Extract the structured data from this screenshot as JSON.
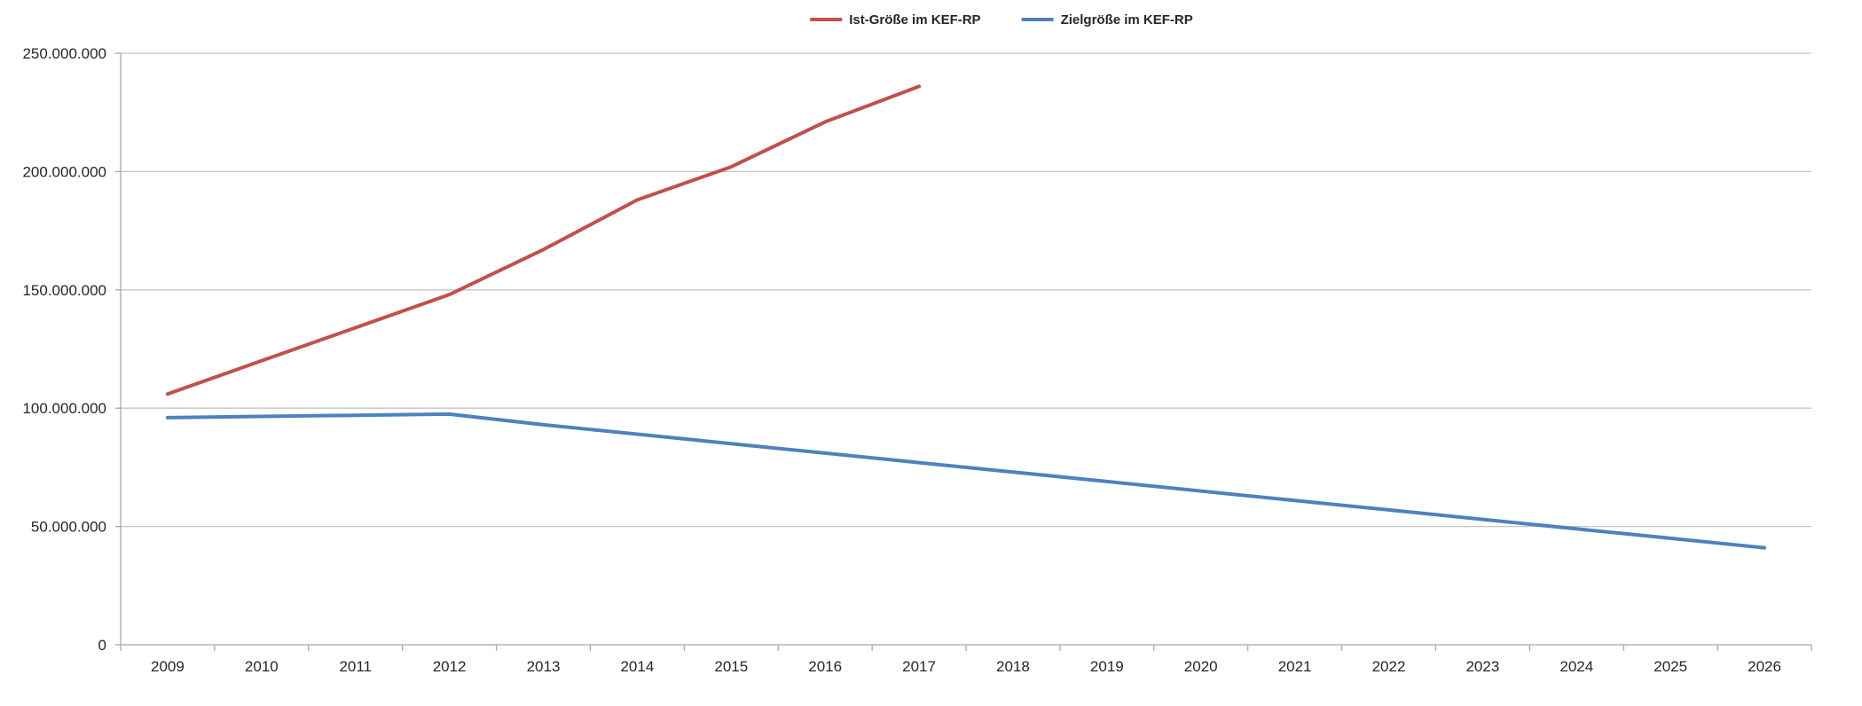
{
  "chart_data": {
    "type": "line",
    "title": "",
    "xlabel": "",
    "ylabel": "",
    "x": [
      "2009",
      "2010",
      "2011",
      "2012",
      "2013",
      "2014",
      "2015",
      "2016",
      "2017",
      "2018",
      "2019",
      "2020",
      "2021",
      "2022",
      "2023",
      "2024",
      "2025",
      "2026"
    ],
    "ylim": [
      0,
      250000000
    ],
    "y_ticks": [
      0,
      50000000,
      100000000,
      150000000,
      200000000,
      250000000
    ],
    "y_tick_labels": [
      "0",
      "50.000.000",
      "100.000.000",
      "150.000.000",
      "200.000.000",
      "250.000.000"
    ],
    "grid": true,
    "legend_position": "top-center",
    "series": [
      {
        "name": "Ist-Größe im KEF-RP",
        "color": "#c0504d",
        "values": [
          106000000,
          120000000,
          134000000,
          148000000,
          167000000,
          188000000,
          202000000,
          221000000,
          236000000,
          null,
          null,
          null,
          null,
          null,
          null,
          null,
          null,
          null
        ]
      },
      {
        "name": "Zielgröße im KEF-RP",
        "color": "#4f81bd",
        "values": [
          96000000,
          96500000,
          97000000,
          97500000,
          93000000,
          89000000,
          85000000,
          81000000,
          77000000,
          73000000,
          69000000,
          65000000,
          61000000,
          57000000,
          53000000,
          49000000,
          45000000,
          41000000
        ]
      }
    ]
  }
}
